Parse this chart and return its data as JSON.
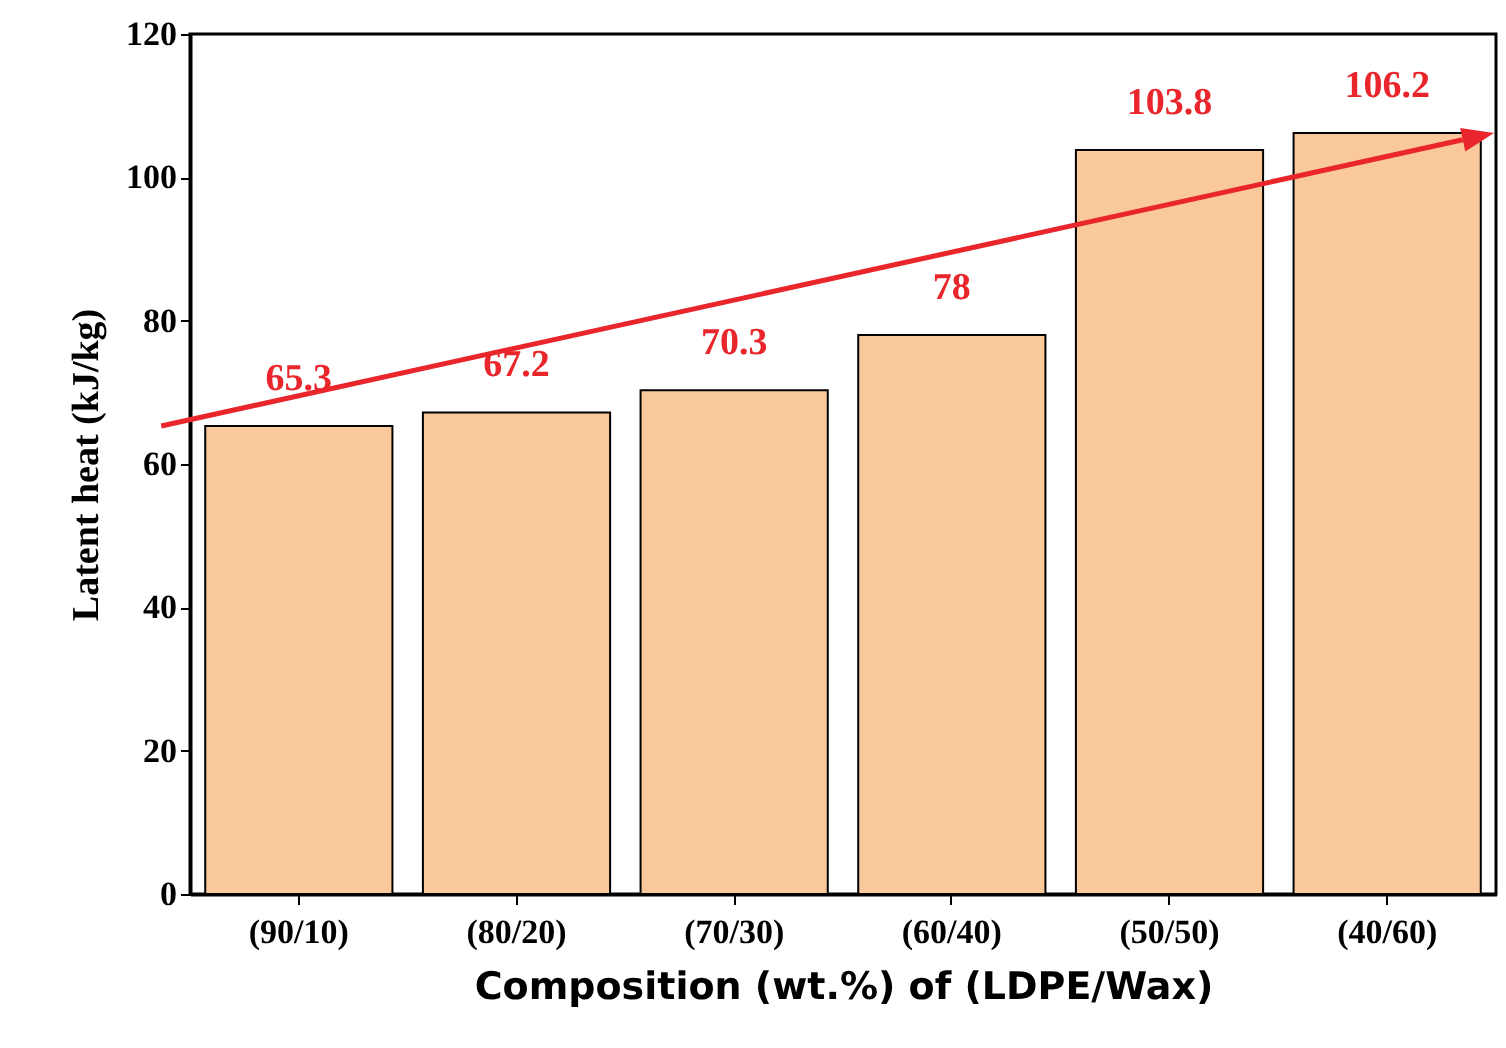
{
  "chart_data": {
    "type": "bar",
    "xlabel": "Composition (wt.%) of (LDPE/Wax)",
    "ylabel": "Latent heat (kJ/kg)",
    "categories": [
      "(90/10)",
      "(80/20)",
      "(70/30)",
      "(60/40)",
      "(50/50)",
      "(40/60)"
    ],
    "series": [
      {
        "color": "#f9c99b",
        "values": [
          65.3,
          67.2,
          70.3,
          78,
          103.8,
          106.2
        ]
      }
    ],
    "ylim": [
      0,
      120
    ],
    "yticks": [
      0,
      20,
      40,
      60,
      80,
      100,
      120
    ],
    "grid": false,
    "data_labels": true
  }
}
